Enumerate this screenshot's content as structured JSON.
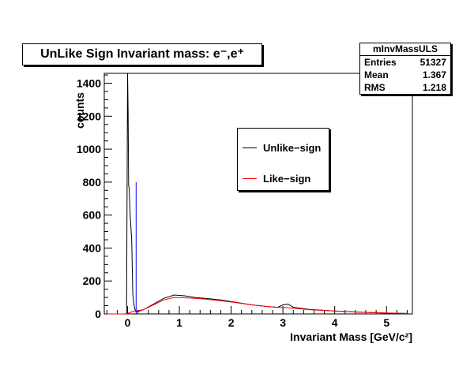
{
  "title": "UnLike Sign Invariant mass: e⁻,e⁺",
  "stats": {
    "name": "mInvMassULS",
    "rows": [
      {
        "label": "Entries",
        "value": "51327"
      },
      {
        "label": "Mean",
        "value": "1.367"
      },
      {
        "label": "RMS",
        "value": "1.218"
      }
    ]
  },
  "legend": {
    "entries": [
      {
        "label": "Unlike−sign",
        "color": "#000000"
      },
      {
        "label": "Like−sign",
        "color": "#ff0000"
      }
    ]
  },
  "chart_data": {
    "type": "line",
    "xlabel": "Invariant Mass [GeV/c²]",
    "ylabel": "counts",
    "xlim": [
      -0.45,
      5.5
    ],
    "ylim": [
      0,
      1460
    ],
    "xticks": [
      0,
      1,
      2,
      3,
      4,
      5
    ],
    "yticks": [
      0,
      200,
      400,
      600,
      800,
      1000,
      1200,
      1400
    ],
    "series": [
      {
        "name": "Unlike−sign",
        "color": "#000000",
        "x": [
          -0.4,
          -0.05,
          -0.02,
          0.0,
          0.01,
          0.02,
          0.03,
          0.05,
          0.08,
          0.1,
          0.12,
          0.14,
          0.16,
          0.2,
          0.3,
          0.5,
          0.7,
          0.9,
          1.1,
          1.3,
          1.5,
          1.8,
          2.1,
          2.4,
          2.7,
          2.9,
          3.0,
          3.1,
          3.2,
          3.5,
          4.0,
          4.5,
          5.0,
          5.4
        ],
        "y": [
          0,
          0,
          0,
          1460,
          1220,
          780,
          760,
          600,
          450,
          120,
          60,
          30,
          15,
          15,
          25,
          60,
          95,
          115,
          110,
          100,
          95,
          85,
          70,
          55,
          45,
          40,
          55,
          60,
          40,
          28,
          18,
          10,
          5,
          3
        ]
      },
      {
        "name": "Like−sign",
        "color": "#ff0000",
        "x": [
          -0.4,
          -0.05,
          0.0,
          0.1,
          0.2,
          0.3,
          0.5,
          0.7,
          0.9,
          1.1,
          1.3,
          1.5,
          1.8,
          2.1,
          2.4,
          2.7,
          2.9,
          3.1,
          3.3,
          3.5,
          4.0,
          4.5,
          5.0,
          5.4
        ],
        "y": [
          0,
          0,
          3,
          15,
          20,
          25,
          55,
          85,
          100,
          98,
          95,
          90,
          80,
          68,
          55,
          45,
          40,
          38,
          32,
          26,
          18,
          11,
          6,
          3
        ]
      },
      {
        "name": "",
        "color": "#0000ff",
        "x": [
          0.165,
          0.165
        ],
        "y": [
          0,
          800
        ]
      }
    ]
  }
}
